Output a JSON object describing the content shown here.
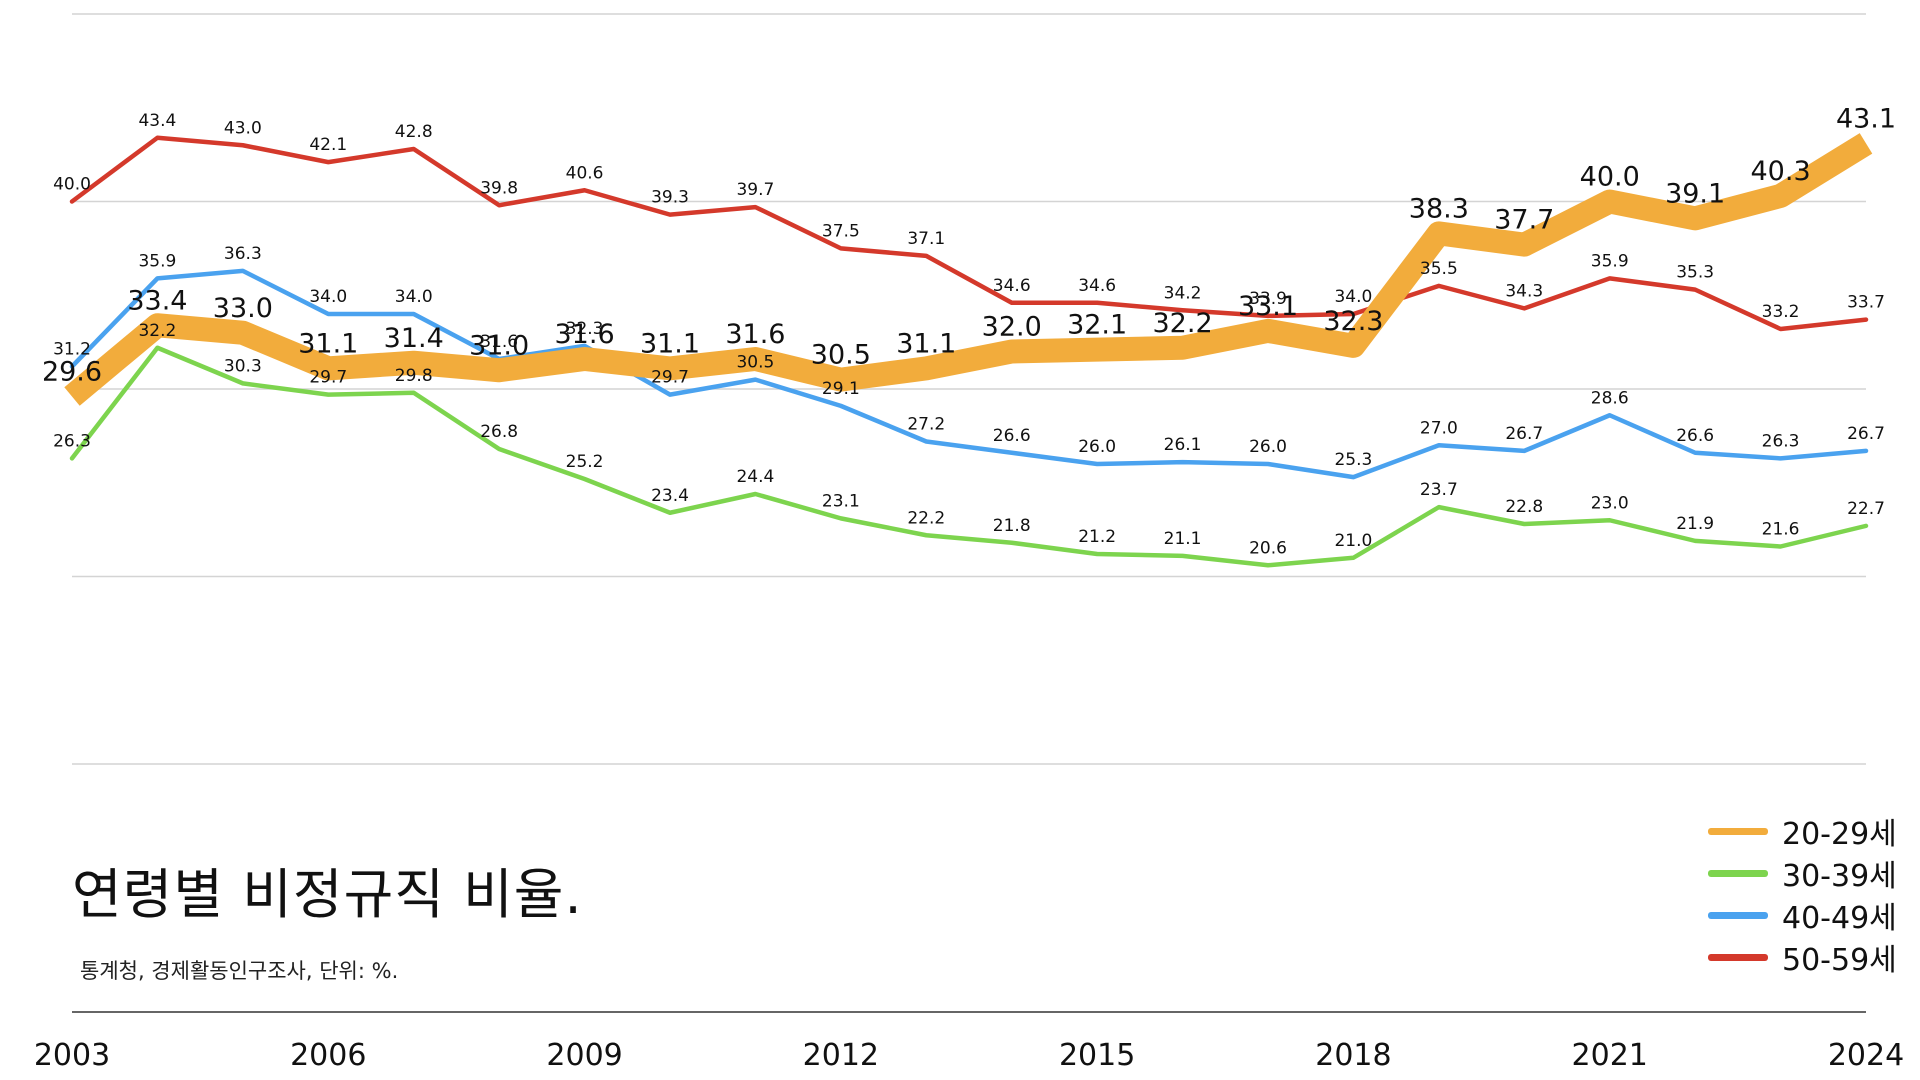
{
  "title": "연령별 비정규직 비율.",
  "subtitle": "통계청, 경제활동인구조사, 단위: %.",
  "chart_data": {
    "type": "line",
    "x": [
      2003,
      2004,
      2005,
      2006,
      2007,
      2008,
      2009,
      2010,
      2011,
      2012,
      2013,
      2014,
      2015,
      2016,
      2017,
      2018,
      2019,
      2020,
      2021,
      2022,
      2023,
      2024
    ],
    "x_tick_labels": [
      "2003",
      "2006",
      "2009",
      "2012",
      "2015",
      "2018",
      "2021",
      "2024"
    ],
    "ylim": [
      10,
      50
    ],
    "gridlines_y": [
      10,
      20,
      30,
      40,
      50
    ],
    "series": [
      {
        "name": "20-29세",
        "color": "#F2AC3C",
        "emphasis": true,
        "values": [
          29.6,
          33.4,
          33.0,
          31.1,
          31.4,
          31.0,
          31.6,
          31.1,
          31.6,
          30.5,
          31.1,
          32.0,
          32.1,
          32.2,
          33.1,
          32.3,
          38.3,
          37.7,
          40.0,
          39.1,
          40.3,
          43.1
        ]
      },
      {
        "name": "30-39세",
        "color": "#7DD44E",
        "emphasis": false,
        "values": [
          26.3,
          32.2,
          30.3,
          29.7,
          29.8,
          26.8,
          25.2,
          23.4,
          24.4,
          23.1,
          22.2,
          21.8,
          21.2,
          21.1,
          20.6,
          21.0,
          23.7,
          22.8,
          23.0,
          21.9,
          21.6,
          22.7
        ]
      },
      {
        "name": "40-49세",
        "color": "#4AA2EF",
        "emphasis": false,
        "values": [
          31.2,
          35.9,
          36.3,
          34.0,
          34.0,
          31.6,
          32.3,
          29.7,
          30.5,
          29.1,
          27.2,
          26.6,
          26.0,
          26.1,
          26.0,
          25.3,
          27.0,
          26.7,
          28.6,
          26.6,
          26.3,
          26.7
        ]
      },
      {
        "name": "50-59세",
        "color": "#D4392B",
        "emphasis": false,
        "values": [
          40.0,
          43.4,
          43.0,
          42.1,
          42.8,
          39.8,
          40.6,
          39.3,
          39.7,
          37.5,
          37.1,
          34.6,
          34.6,
          34.2,
          33.9,
          34.0,
          35.5,
          34.3,
          35.9,
          35.3,
          33.2,
          33.7
        ]
      }
    ],
    "legend": "bottom-right",
    "grid": true
  }
}
